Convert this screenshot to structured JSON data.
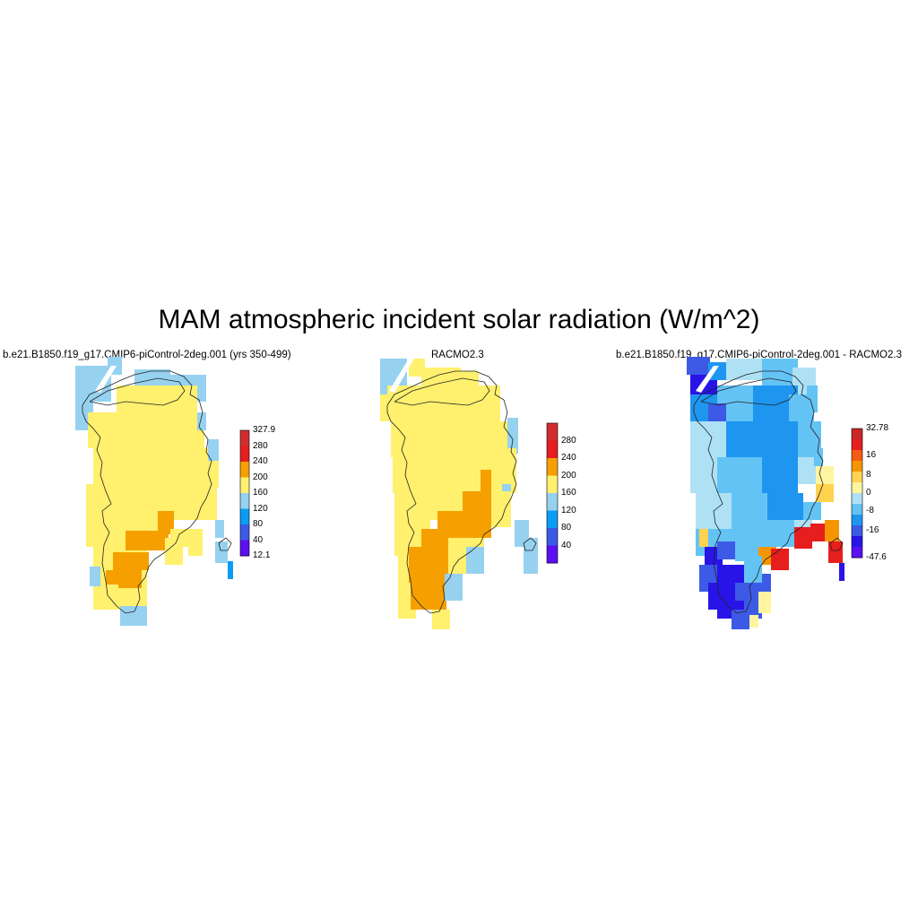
{
  "title": "MAM atmospheric incident solar radiation (W/m^2)",
  "colors": {
    "c1": "#5a10f0",
    "c2": "#3c5ae6",
    "c3": "#0a9cf5",
    "c4": "#96d2f0",
    "c5": "#fff06e",
    "c6": "#f5a000",
    "c7": "#e61e1e",
    "c8": "#d22d2d",
    "d_vdark": "#2814e6",
    "d_dark": "#3c5ae6",
    "d_mid": "#1e96f0",
    "d_light": "#64c3f5",
    "d_pale": "#afe1f5",
    "d_cream": "#fff5a0",
    "d_yellow": "#ffd250",
    "d_orange": "#f59600",
    "d_red": "#e61e1e",
    "d_dred": "#c82828"
  },
  "panels": [
    {
      "title": "b.e21.B1850.f19_g17.CMIP6-piControl-2deg.001 (yrs 350-499)",
      "colorbar": {
        "labels": [
          "327.9",
          "280",
          "240",
          "200",
          "160",
          "120",
          "80",
          "40",
          "12.1"
        ],
        "colors": [
          "#d22d2d",
          "#e61e1e",
          "#f5a000",
          "#fff06e",
          "#96d2f0",
          "#0a9cf5",
          "#3c5ae6",
          "#5a10f0"
        ]
      }
    },
    {
      "title": "RACMO2.3",
      "colorbar": {
        "labels": [
          "280",
          "240",
          "200",
          "160",
          "120",
          "80",
          "40"
        ],
        "colors": [
          "#d22d2d",
          "#e61e1e",
          "#f5a000",
          "#fff06e",
          "#96d2f0",
          "#0a9cf5",
          "#3c5ae6",
          "#5a10f0"
        ]
      }
    },
    {
      "title": "b.e21.B1850.f19_g17.CMIP6-piControl-2deg.001 - RACMO2.3",
      "colorbar": {
        "labels": [
          "32.78",
          "16",
          "8",
          "0",
          "-8",
          "-16",
          "-47.6"
        ],
        "colors": [
          "#c82828",
          "#e61e1e",
          "#f55a14",
          "#f59600",
          "#ffd250",
          "#fff5a0",
          "#afe1f5",
          "#64c3f5",
          "#1e96f0",
          "#3c5ae6",
          "#2814e6",
          "#5a10f0"
        ]
      }
    }
  ]
}
